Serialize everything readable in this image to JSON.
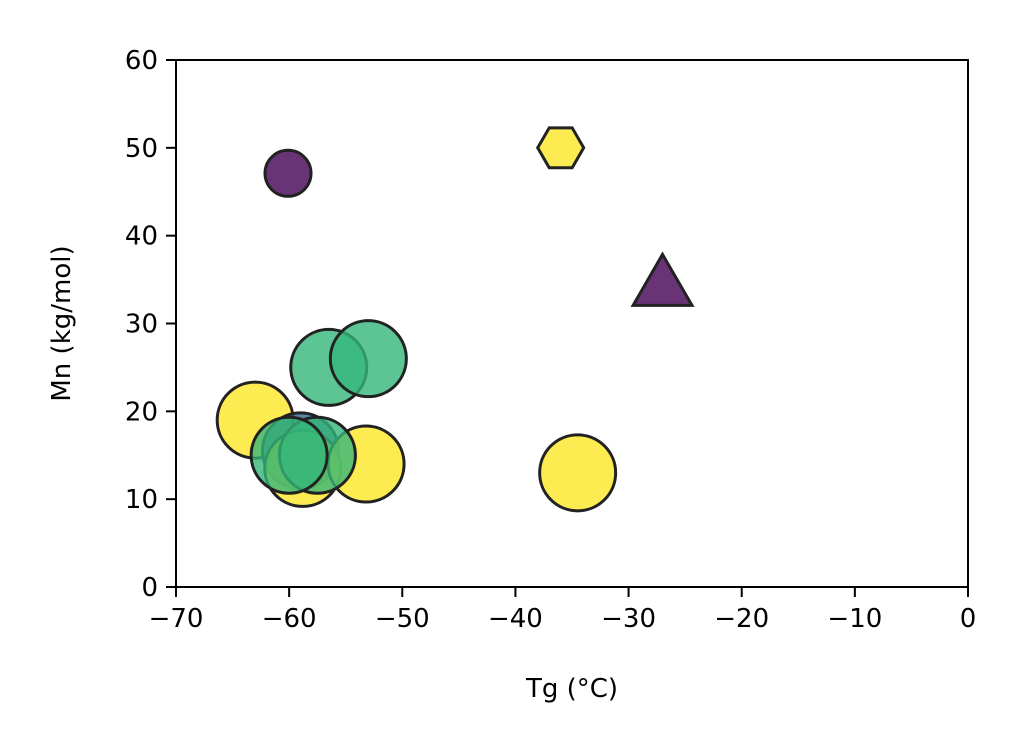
{
  "chart_data": {
    "type": "scatter",
    "title": "",
    "xlabel": "Tg (°C)",
    "ylabel": "Mn (kg/mol)",
    "xlim": [
      -70,
      0
    ],
    "ylim": [
      0,
      60
    ],
    "xticks": [
      -70,
      -60,
      -50,
      -40,
      -30,
      -20,
      -10,
      0
    ],
    "yticks": [
      0,
      10,
      20,
      30,
      40,
      50,
      60
    ],
    "xtick_labels": [
      "−70",
      "−60",
      "−50",
      "−40",
      "−30",
      "−20",
      "−10",
      "0"
    ],
    "ytick_labels": [
      "0",
      "10",
      "20",
      "30",
      "40",
      "50",
      "60"
    ],
    "grid": false,
    "legend": "none",
    "colors": {
      "purple": "#440154",
      "blue": "#31688e",
      "green": "#35b779",
      "yellow": "#fde725"
    },
    "points": [
      {
        "x": -60.1,
        "y": 47.1,
        "marker": "circle",
        "color": "purple",
        "size": "small"
      },
      {
        "x": -36.0,
        "y": 50.0,
        "marker": "hexagon",
        "color": "yellow",
        "size": "small"
      },
      {
        "x": -27.0,
        "y": 34.0,
        "marker": "triangle",
        "color": "purple",
        "size": "medium"
      },
      {
        "x": -63.0,
        "y": 19.0,
        "marker": "circle",
        "color": "yellow",
        "size": "large"
      },
      {
        "x": -59.0,
        "y": 15.5,
        "marker": "circle",
        "color": "blue",
        "size": "large"
      },
      {
        "x": -58.8,
        "y": 13.5,
        "marker": "circle",
        "color": "yellow",
        "size": "large"
      },
      {
        "x": -53.2,
        "y": 14.0,
        "marker": "circle",
        "color": "yellow",
        "size": "large"
      },
      {
        "x": -34.5,
        "y": 13.0,
        "marker": "circle",
        "color": "yellow",
        "size": "large"
      },
      {
        "x": -56.5,
        "y": 25.0,
        "marker": "circle",
        "color": "green",
        "size": "large"
      },
      {
        "x": -53.0,
        "y": 26.0,
        "marker": "circle",
        "color": "green",
        "size": "large"
      },
      {
        "x": -57.5,
        "y": 15.0,
        "marker": "circle",
        "color": "green",
        "size": "large"
      },
      {
        "x": -60.0,
        "y": 15.0,
        "marker": "circle",
        "color": "green",
        "size": "large"
      }
    ]
  }
}
